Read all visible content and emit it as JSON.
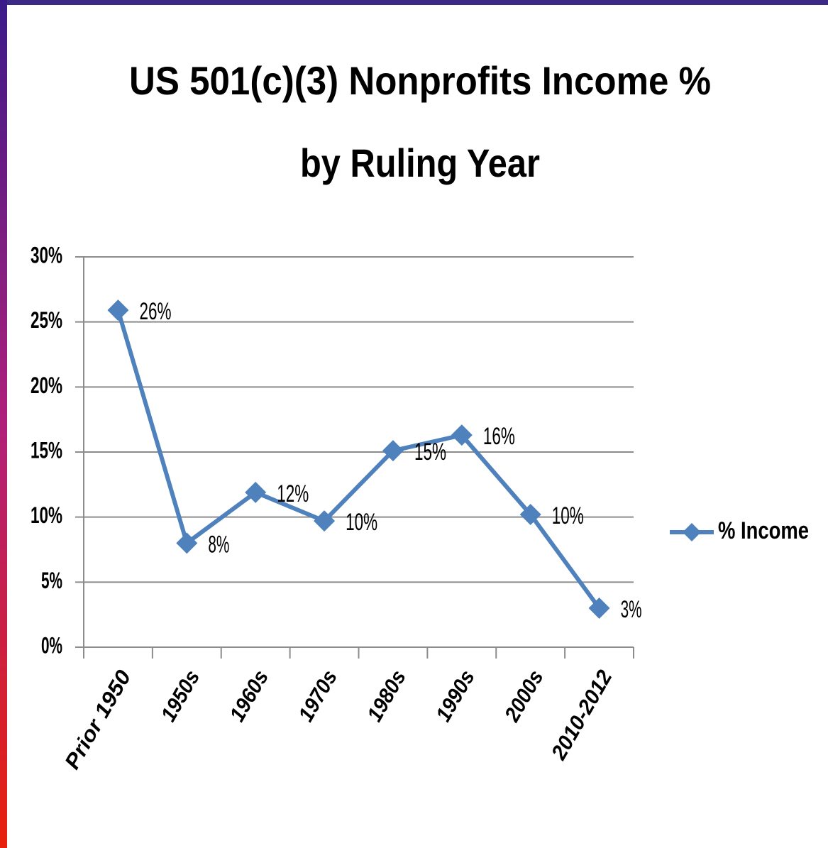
{
  "chart_data": {
    "type": "line",
    "title": [
      "US 501(c)(3) Nonprofits  Income %",
      "by Ruling Year"
    ],
    "categories": [
      "Prior 1950",
      "1950s",
      "1960s",
      "1970s",
      "1980s",
      "1990s",
      "2000s",
      "2010-2012"
    ],
    "series": [
      {
        "name": "% Income",
        "color": "#4f81bd",
        "values": [
          25.9,
          8.0,
          11.9,
          9.7,
          15.1,
          16.3,
          10.2,
          3.0
        ],
        "value_labels": [
          "26%",
          "8%",
          "12%",
          "10%",
          "15%",
          "16%",
          "10%",
          "3%"
        ]
      }
    ],
    "ylim": [
      0,
      30
    ],
    "yticks": [
      {
        "value": 0,
        "label": "0%"
      },
      {
        "value": 5,
        "label": "5%"
      },
      {
        "value": 10,
        "label": "10%"
      },
      {
        "value": 15,
        "label": "15%"
      },
      {
        "value": 20,
        "label": "20%"
      },
      {
        "value": 25,
        "label": "25%"
      },
      {
        "value": 30,
        "label": "30%"
      }
    ],
    "grid": true,
    "legend": "right"
  }
}
